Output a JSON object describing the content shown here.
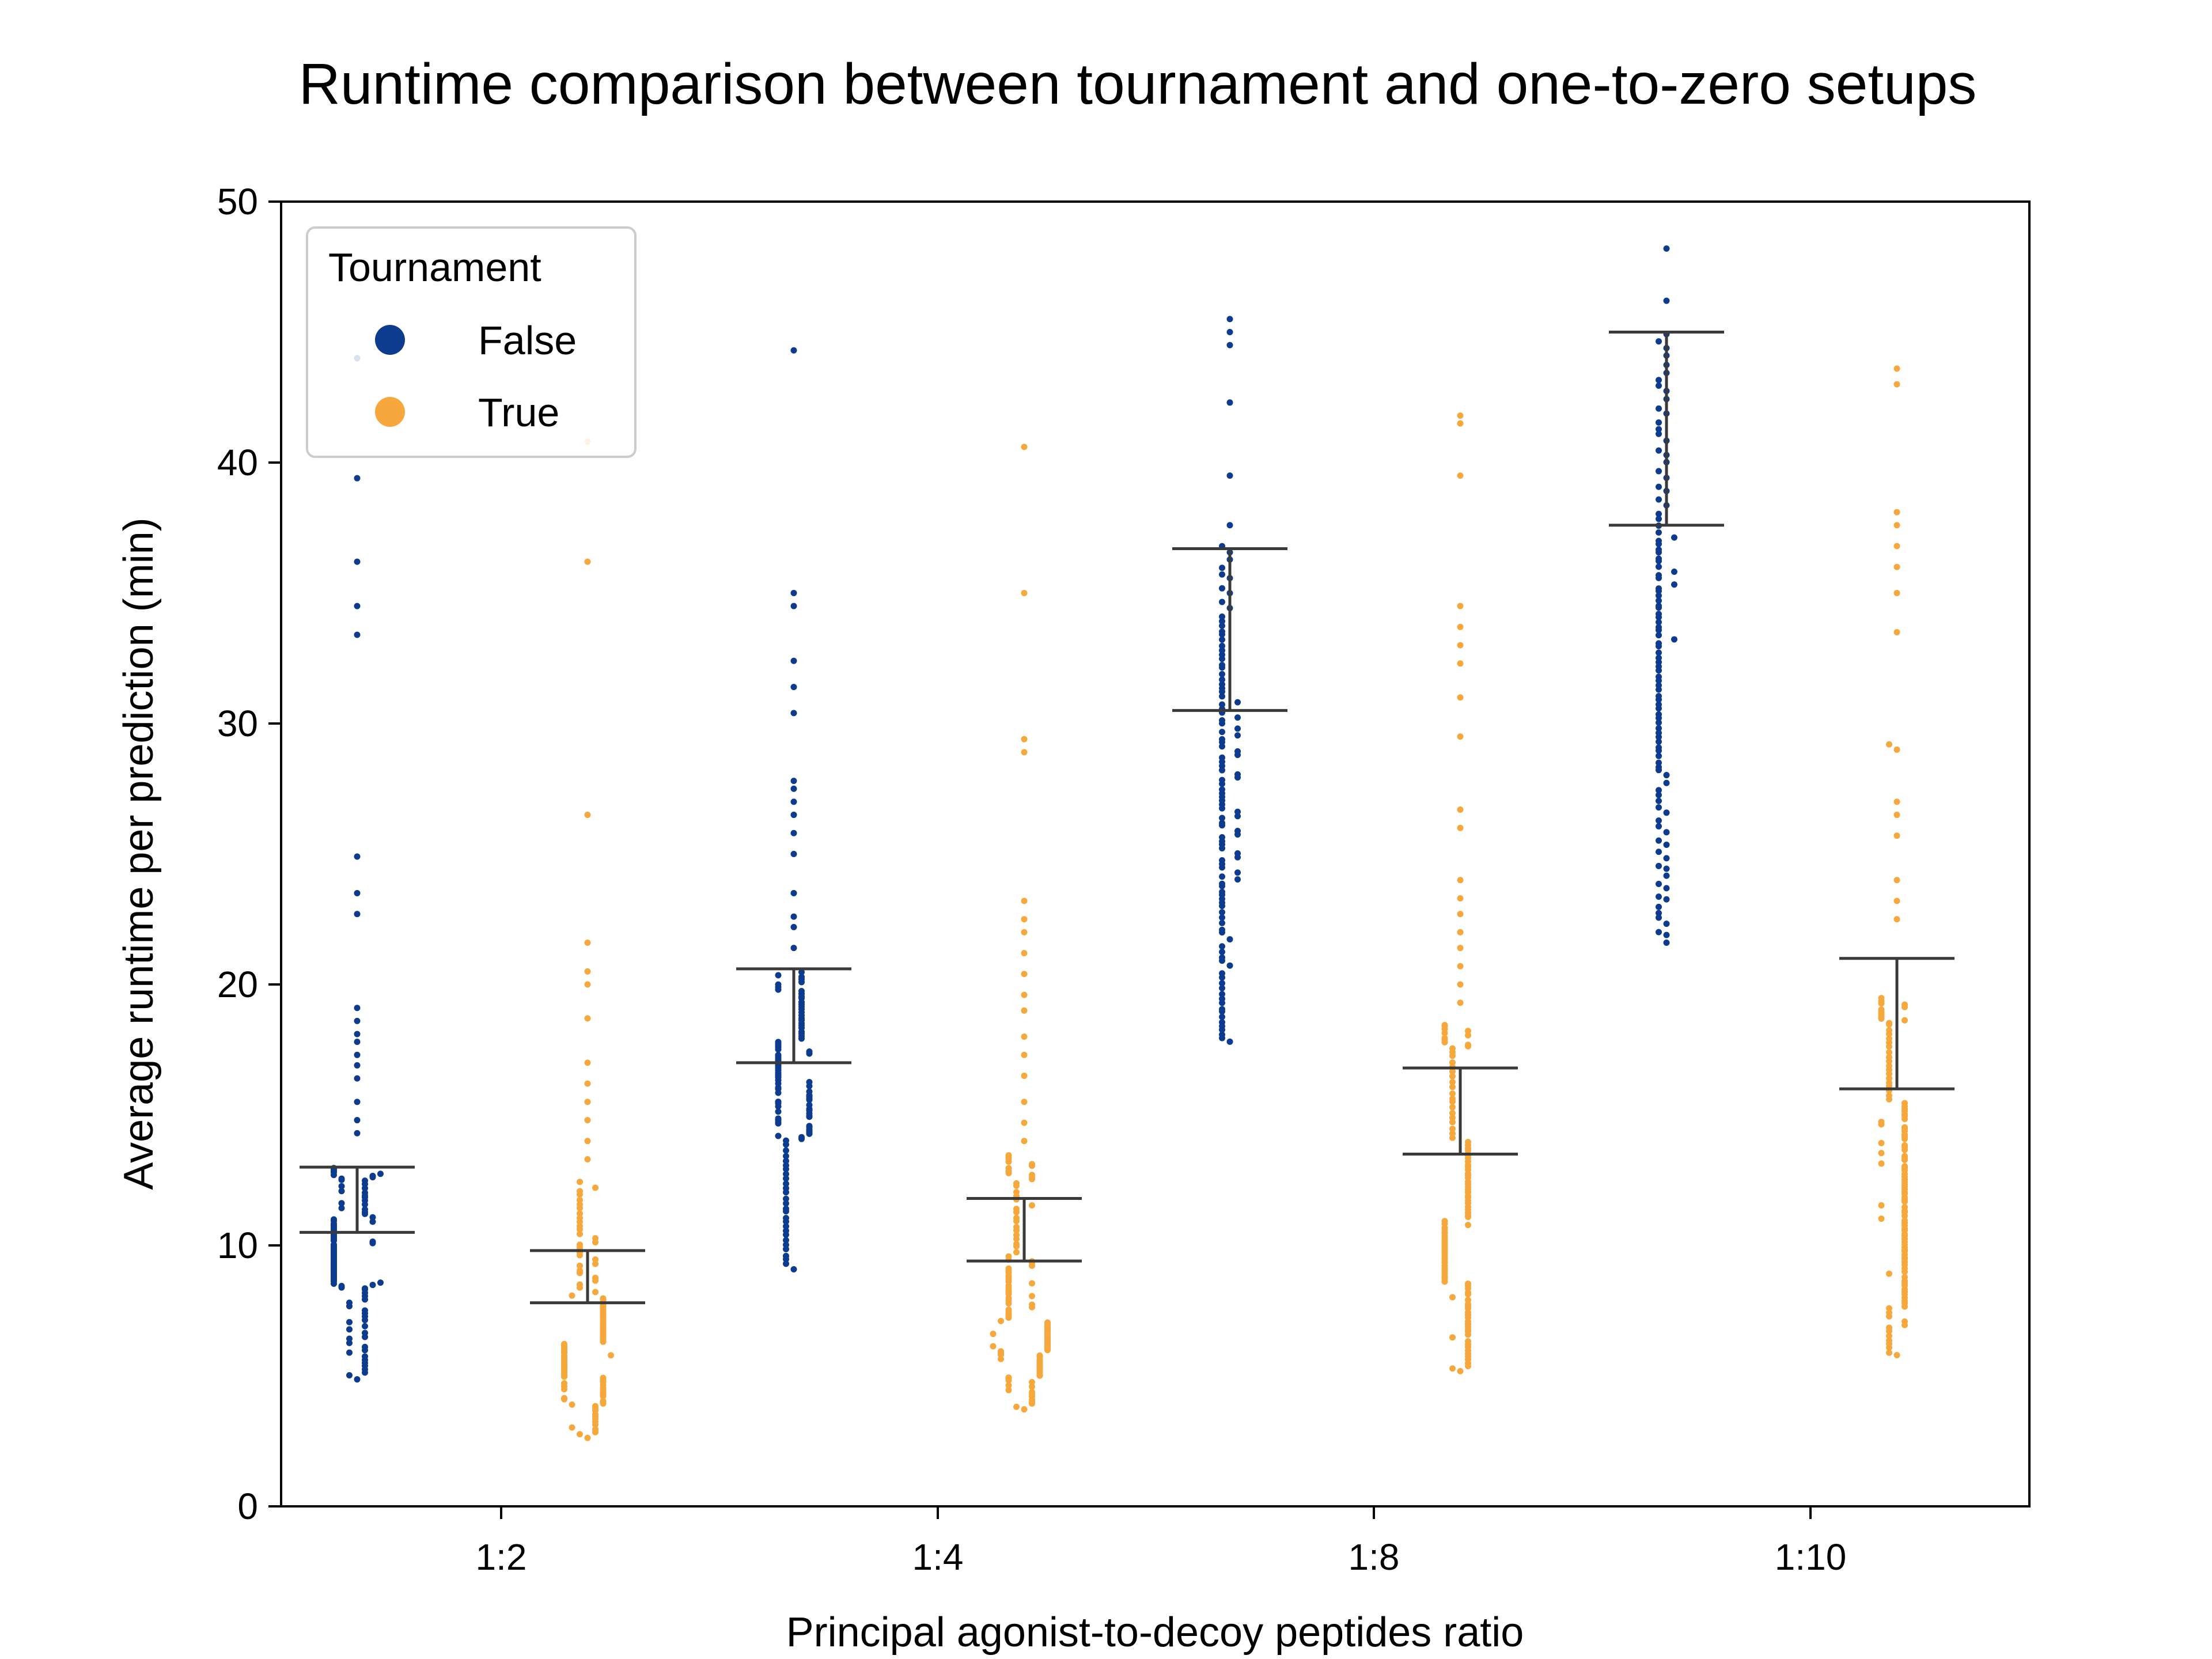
{
  "chart_data": {
    "type": "scatter",
    "subtype": "swarm",
    "title": "Runtime comparison between tournament and one-to-zero setups",
    "xlabel": "Principal agonist-to-decoy peptides ratio",
    "ylabel": "Average runtime per prediction (min)",
    "ylim": [
      0,
      50
    ],
    "yticks": [
      0,
      10,
      20,
      30,
      40,
      50
    ],
    "categories": [
      "1:2",
      "1:4",
      "1:8",
      "1:10"
    ],
    "legend": {
      "title": "Tournament",
      "position": "top-left"
    },
    "grid": false,
    "series": [
      {
        "name": "False",
        "color": "#0d3b8e",
        "groups": [
          {
            "category": "1:2",
            "n": 110,
            "lower": 4.8,
            "p10": 6.2,
            "q1": 8.3,
            "median": 9.6,
            "q3": 11.0,
            "p90": 12.5,
            "upper": 13.0,
            "mean_line": 13.0,
            "median_line": 10.5,
            "outliers": [
              14.3,
              14.8,
              15.5,
              16.4,
              16.9,
              17.3,
              17.8,
              18.1,
              18.6,
              19.1,
              22.7,
              23.5,
              24.9,
              33.4,
              34.5,
              36.2,
              39.4,
              44.0
            ]
          },
          {
            "category": "1:4",
            "n": 110,
            "lower": 9.0,
            "p10": 11.0,
            "q1": 14.0,
            "median": 15.8,
            "q3": 17.8,
            "p90": 19.5,
            "upper": 20.5,
            "mean_line": 20.6,
            "median_line": 17.0,
            "outliers": [
              21.4,
              22.2,
              22.6,
              23.5,
              25.0,
              25.8,
              26.5,
              27.0,
              27.5,
              27.8,
              30.4,
              31.4,
              32.4,
              34.5,
              35.0,
              44.3
            ]
          },
          {
            "category": "1:8",
            "n": 110,
            "lower": 17.7,
            "p10": 19.5,
            "q1": 23.0,
            "median": 27.0,
            "q3": 31.0,
            "p90": 34.0,
            "upper": 37.0,
            "mean_line": 36.7,
            "median_line": 30.5,
            "outliers": [
              37.6,
              39.5,
              42.3,
              44.5,
              45.0,
              45.5
            ]
          },
          {
            "category": "1:10",
            "n": 110,
            "lower": 21.5,
            "p10": 24.0,
            "q1": 28.0,
            "median": 33.0,
            "q3": 37.5,
            "p90": 42.0,
            "upper": 45.0,
            "mean_line": 45.0,
            "median_line": 37.6,
            "outliers": [
              46.2,
              48.2
            ]
          }
        ]
      },
      {
        "name": "True",
        "color": "#f6a83c",
        "groups": [
          {
            "category": "1:2",
            "n": 120,
            "lower": 2.6,
            "p10": 3.8,
            "q1": 4.8,
            "median": 6.2,
            "q3": 8.0,
            "p90": 10.5,
            "upper": 12.5,
            "mean_line": 9.8,
            "median_line": 7.8,
            "outliers": [
              13.3,
              14.0,
              14.8,
              15.5,
              16.2,
              17.0,
              18.7,
              20.0,
              20.5,
              21.6,
              26.5,
              36.2,
              40.8
            ]
          },
          {
            "category": "1:4",
            "n": 120,
            "lower": 3.7,
            "p10": 4.8,
            "q1": 5.8,
            "median": 7.0,
            "q3": 9.5,
            "p90": 12.5,
            "upper": 13.5,
            "mean_line": 11.8,
            "median_line": 9.4,
            "outliers": [
              14.0,
              14.7,
              15.5,
              16.5,
              17.3,
              18.0,
              19.0,
              19.6,
              20.4,
              21.2,
              22.0,
              22.5,
              23.2,
              28.9,
              29.4,
              35.0,
              40.6
            ]
          },
          {
            "category": "1:8",
            "n": 120,
            "lower": 5.1,
            "p10": 6.5,
            "q1": 8.5,
            "median": 10.8,
            "q3": 14.0,
            "p90": 17.5,
            "upper": 18.5,
            "mean_line": 16.8,
            "median_line": 13.5,
            "outliers": [
              19.3,
              20.0,
              20.7,
              21.4,
              22.0,
              22.7,
              23.3,
              24.0,
              26.0,
              26.7,
              29.5,
              31.0,
              32.3,
              33.0,
              33.7,
              34.5,
              39.5,
              41.5,
              41.8
            ]
          },
          {
            "category": "1:10",
            "n": 120,
            "lower": 5.7,
            "p10": 7.5,
            "q1": 9.5,
            "median": 12.5,
            "q3": 15.5,
            "p90": 18.5,
            "upper": 19.5,
            "mean_line": 21.0,
            "median_line": 16.0,
            "outliers": [
              22.5,
              23.2,
              24.0,
              25.7,
              26.5,
              27.0,
              29.0,
              29.2,
              33.5,
              35.0,
              36.0,
              36.8,
              37.6,
              38.1,
              43.0,
              43.6
            ]
          }
        ]
      }
    ]
  }
}
